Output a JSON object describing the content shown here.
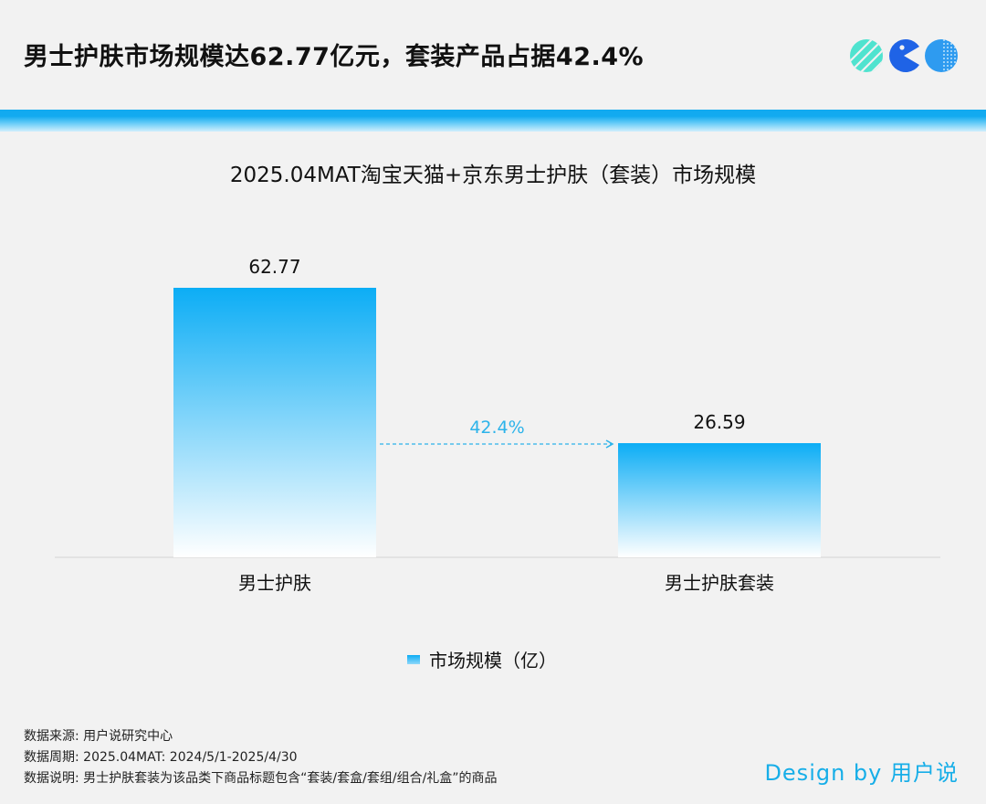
{
  "header": {
    "headline": "男士护肤市场规模达62.77亿元，套装产品占据42.4%",
    "logo_icons": [
      "striped-circle-icon",
      "pacman-icon",
      "dotted-circle-icon"
    ]
  },
  "colors": {
    "accent": "#12aaf0",
    "bar_top": "#0cadf5",
    "bar_bottom": "#ffffff",
    "logo_mint": "#4fe3cf",
    "logo_blue": "#1f63e6",
    "logo_sky": "#2e9bf0",
    "arrow": "#2cb3ea",
    "brand": "#17aee8"
  },
  "chart_data": {
    "type": "bar",
    "title": "2025.04MAT淘宝天猫+京东男士护肤（套装）市场规模",
    "categories": [
      "男士护肤",
      "男士护肤套装"
    ],
    "series": [
      {
        "name": "市场规模（亿）",
        "values": [
          62.77,
          26.59
        ]
      }
    ],
    "data_labels": [
      "62.77",
      "26.59"
    ],
    "annotation": {
      "text": "42.4%",
      "from": "男士护肤",
      "to": "男士护肤套装",
      "style": "dashed-arrow"
    },
    "ylim": [
      0,
      62.77
    ],
    "grid": false,
    "legend": "bottom-center",
    "xlabel": "",
    "ylabel": ""
  },
  "legend": {
    "label": "市场规模（亿）"
  },
  "notes": {
    "source": "数据来源: 用户说研究中心",
    "period": "数据周期: 2025.04MAT: 2024/5/1-2025/4/30",
    "description": "数据说明: 男士护肤套装为该品类下商品标题包含“套装/套盒/套组/组合/礼盒”的商品"
  },
  "brand": {
    "text": "Design by 用户说"
  }
}
